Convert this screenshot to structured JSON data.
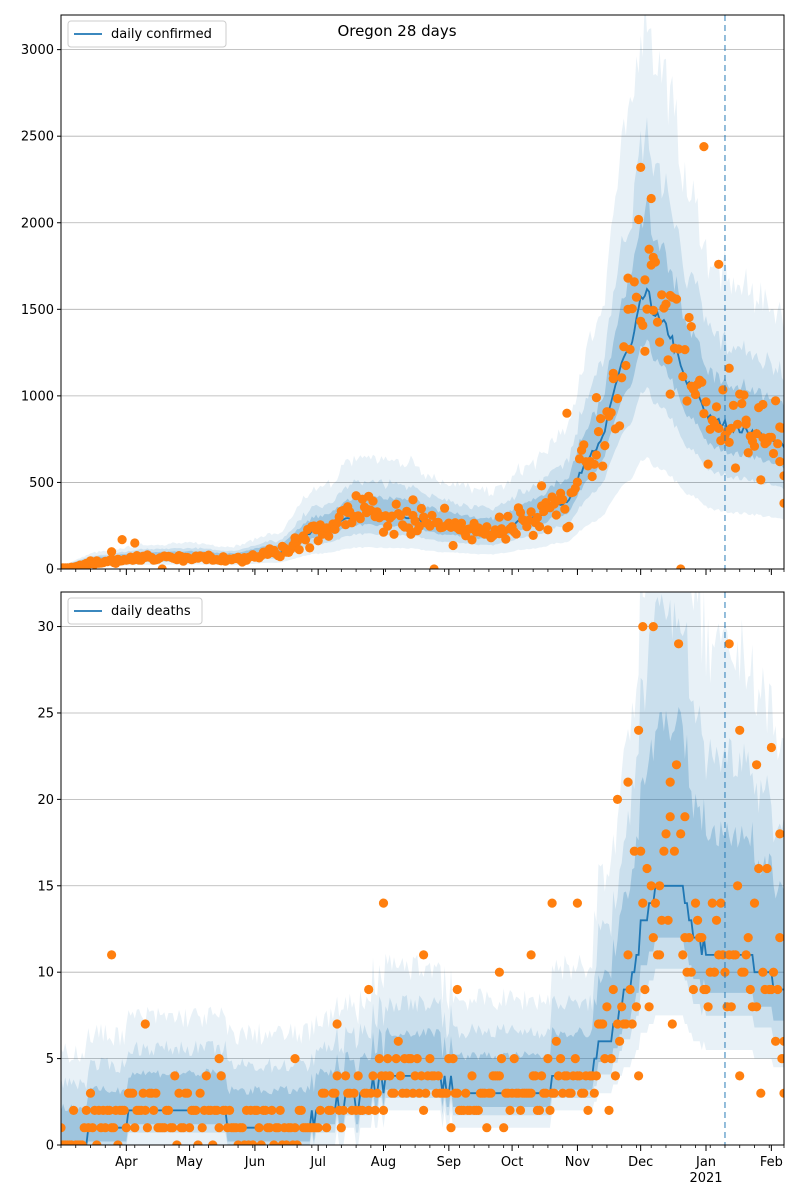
{
  "chart_data": [
    {
      "type": "line",
      "title": "Oregon 28 days",
      "legend": [
        "daily confirmed"
      ],
      "legend_position": "top-left",
      "grid": "horizontal",
      "x_start": "2020-03-01",
      "x_end": "2021-02-07",
      "ylim": [
        0,
        3200
      ],
      "yticks": [
        "0",
        "500",
        "1000",
        "1500",
        "2000",
        "2500",
        "3000"
      ],
      "vline_date": "2021-01-10",
      "fit_knots": [
        [
          "2020-03-01",
          5
        ],
        [
          "2020-03-20",
          40
        ],
        [
          "2020-04-10",
          60
        ],
        [
          "2020-05-01",
          65
        ],
        [
          "2020-05-20",
          55
        ],
        [
          "2020-06-10",
          90
        ],
        [
          "2020-07-01",
          220
        ],
        [
          "2020-07-20",
          310
        ],
        [
          "2020-08-10",
          300
        ],
        [
          "2020-09-01",
          240
        ],
        [
          "2020-09-20",
          210
        ],
        [
          "2020-10-10",
          290
        ],
        [
          "2020-10-25",
          380
        ],
        [
          "2020-11-10",
          700
        ],
        [
          "2020-11-25",
          1250
        ],
        [
          "2020-12-03",
          1580
        ],
        [
          "2020-12-12",
          1400
        ],
        [
          "2020-12-25",
          1050
        ],
        [
          "2021-01-05",
          850
        ],
        [
          "2021-01-20",
          800
        ],
        [
          "2021-02-07",
          720
        ]
      ],
      "observed_samples": [
        [
          "2020-03-25",
          100
        ],
        [
          "2020-03-30",
          170
        ],
        [
          "2020-04-05",
          150
        ],
        [
          "2020-05-10",
          70
        ],
        [
          "2020-06-20",
          180
        ],
        [
          "2020-07-15",
          360
        ],
        [
          "2020-07-25",
          420
        ],
        [
          "2020-08-15",
          400
        ],
        [
          "2020-09-05",
          250
        ],
        [
          "2020-09-25",
          300
        ],
        [
          "2020-10-15",
          480
        ],
        [
          "2020-10-27",
          900
        ],
        [
          "2020-11-10",
          990
        ],
        [
          "2020-11-18",
          1100
        ],
        [
          "2020-11-25",
          1500
        ],
        [
          "2020-12-01",
          2320
        ],
        [
          "2020-12-03",
          1670
        ],
        [
          "2020-12-06",
          2140
        ],
        [
          "2020-12-07",
          1800
        ],
        [
          "2020-12-15",
          1580
        ],
        [
          "2020-12-25",
          1400
        ],
        [
          "2020-12-31",
          2440
        ],
        [
          "2021-01-07",
          1760
        ],
        [
          "2021-01-12",
          1160
        ],
        [
          "2021-01-20",
          860
        ],
        [
          "2021-01-28",
          950
        ],
        [
          "2021-02-05",
          820
        ],
        [
          "2021-02-07",
          380
        ]
      ],
      "months": [
        "Apr",
        "May",
        "Jun",
        "Jul",
        "Aug",
        "Sep",
        "Oct",
        "Nov",
        "Dec",
        "Jan",
        "Feb"
      ],
      "year_label": "2021"
    },
    {
      "type": "line",
      "title": "",
      "legend": [
        "daily deaths"
      ],
      "legend_position": "top-left",
      "grid": "horizontal",
      "x_start": "2020-03-01",
      "x_end": "2021-02-07",
      "ylim": [
        0,
        32
      ],
      "yticks": [
        "0",
        "5",
        "10",
        "15",
        "20",
        "25",
        "30"
      ],
      "vline_date": "2021-01-10",
      "fit_knots": [
        [
          "2020-03-01",
          0
        ],
        [
          "2020-03-25",
          1
        ],
        [
          "2020-04-05",
          2
        ],
        [
          "2020-05-15",
          2
        ],
        [
          "2020-05-25",
          1
        ],
        [
          "2020-06-25",
          1
        ],
        [
          "2020-07-05",
          2
        ],
        [
          "2020-07-15",
          2.5
        ],
        [
          "2020-07-25",
          3
        ],
        [
          "2020-08-05",
          4
        ],
        [
          "2020-08-25",
          4
        ],
        [
          "2020-09-05",
          3
        ],
        [
          "2020-10-15",
          3
        ],
        [
          "2020-10-25",
          4
        ],
        [
          "2020-11-05",
          4
        ],
        [
          "2020-11-15",
          6
        ],
        [
          "2020-11-25",
          9
        ],
        [
          "2020-12-03",
          13
        ],
        [
          "2020-12-10",
          15
        ],
        [
          "2020-12-20",
          15
        ],
        [
          "2020-12-28",
          12
        ],
        [
          "2021-01-05",
          11
        ],
        [
          "2021-01-20",
          11
        ],
        [
          "2021-01-28",
          10
        ],
        [
          "2021-02-07",
          9
        ]
      ],
      "observed_samples": [
        [
          "2020-03-25",
          11
        ],
        [
          "2020-04-10",
          7
        ],
        [
          "2020-05-15",
          5
        ],
        [
          "2020-06-20",
          5
        ],
        [
          "2020-07-10",
          7
        ],
        [
          "2020-07-25",
          9
        ],
        [
          "2020-08-01",
          14
        ],
        [
          "2020-08-20",
          11
        ],
        [
          "2020-09-05",
          9
        ],
        [
          "2020-09-25",
          10
        ],
        [
          "2020-10-10",
          11
        ],
        [
          "2020-10-20",
          14
        ],
        [
          "2020-11-01",
          14
        ],
        [
          "2020-11-20",
          20
        ],
        [
          "2020-11-25",
          21
        ],
        [
          "2020-11-30",
          24
        ],
        [
          "2020-12-02",
          30
        ],
        [
          "2020-12-07",
          30
        ],
        [
          "2020-12-10",
          15
        ],
        [
          "2020-12-15",
          21
        ],
        [
          "2020-12-22",
          19
        ],
        [
          "2021-01-05",
          10
        ],
        [
          "2021-01-12",
          29
        ],
        [
          "2021-01-17",
          24
        ],
        [
          "2021-01-25",
          22
        ],
        [
          "2021-02-01",
          23
        ],
        [
          "2021-02-05",
          18
        ],
        [
          "2021-02-07",
          3
        ]
      ],
      "months": [
        "Apr",
        "May",
        "Jun",
        "Jul",
        "Aug",
        "Sep",
        "Oct",
        "Nov",
        "Dec",
        "Jan",
        "Feb"
      ],
      "year_label": "2021"
    }
  ],
  "colors": {
    "fit_line": "#1f77b4",
    "band": "#1f77b4",
    "observed": "#ff7f0e",
    "grid": "#b0b0b0"
  }
}
